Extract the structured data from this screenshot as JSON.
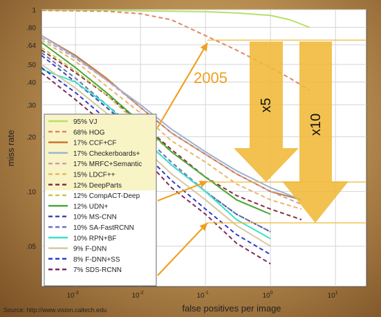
{
  "chart_data": {
    "type": "line",
    "xlabel": "false positives per image",
    "ylabel": "miss rate",
    "x_scale": "log",
    "y_scale": "log",
    "xlim": [
      0.0003,
      30
    ],
    "ylim": [
      0.03,
      1
    ],
    "x_ticks": [
      {
        "value": 0.001,
        "base": "10",
        "exp": "-3"
      },
      {
        "value": 0.01,
        "base": "10",
        "exp": "-2"
      },
      {
        "value": 0.1,
        "base": "10",
        "exp": "-1"
      },
      {
        "value": 1,
        "base": "10",
        "exp": "0"
      },
      {
        "value": 10,
        "base": "10",
        "exp": "1"
      }
    ],
    "y_ticks": [
      {
        "value": 1,
        "label": "1"
      },
      {
        "value": 0.8,
        "label": ".80"
      },
      {
        "value": 0.64,
        "label": ".64"
      },
      {
        "value": 0.5,
        "label": ".50"
      },
      {
        "value": 0.4,
        "label": ".40"
      },
      {
        "value": 0.3,
        "label": ".30"
      },
      {
        "value": 0.2,
        "label": ".20"
      },
      {
        "value": 0.1,
        "label": ".10"
      },
      {
        "value": 0.05,
        "label": ".05"
      }
    ],
    "grid": true,
    "legend_position": "lower-left",
    "series": [
      {
        "name": "95% VJ",
        "color": "#b6e06a",
        "dash": "solid",
        "x": [
          0.0003,
          0.003,
          0.03,
          0.1,
          0.3,
          1,
          2,
          4
        ],
        "y": [
          0.99,
          0.99,
          0.98,
          0.975,
          0.96,
          0.93,
          0.88,
          0.8
        ]
      },
      {
        "name": "68% HOG",
        "color": "#e0866a",
        "dash": "dashed",
        "x": [
          0.0003,
          0.003,
          0.01,
          0.03,
          0.1,
          0.3,
          1,
          2,
          4
        ],
        "y": [
          0.99,
          0.98,
          0.95,
          0.88,
          0.72,
          0.6,
          0.48,
          0.42,
          0.36
        ]
      },
      {
        "name": "17% CCF+CF",
        "color": "#c8762e",
        "dash": "solid",
        "x": [
          0.0003,
          0.001,
          0.003,
          0.01,
          0.03,
          0.1,
          0.3,
          1,
          3
        ],
        "y": [
          0.72,
          0.56,
          0.42,
          0.29,
          0.21,
          0.16,
          0.125,
          0.1,
          0.09
        ]
      },
      {
        "name": "17% Checkerboards+",
        "color": "#9ab4d2",
        "dash": "solid",
        "x": [
          0.0003,
          0.001,
          0.003,
          0.01,
          0.03,
          0.1,
          0.3,
          1,
          3
        ],
        "y": [
          0.72,
          0.55,
          0.41,
          0.3,
          0.22,
          0.165,
          0.13,
          0.105,
          0.09
        ]
      },
      {
        "name": "17% MRFC+Semantic",
        "color": "#c9a0b4",
        "dash": "dashed",
        "x": [
          0.0003,
          0.001,
          0.003,
          0.01,
          0.03,
          0.1,
          0.3,
          1,
          3
        ],
        "y": [
          0.7,
          0.54,
          0.41,
          0.29,
          0.21,
          0.16,
          0.125,
          0.1,
          0.085
        ]
      },
      {
        "name": "15% LDCF++",
        "color": "#e8b56a",
        "dash": "dashed",
        "x": [
          0.0003,
          0.001,
          0.003,
          0.01,
          0.03,
          0.1,
          0.3,
          1,
          3
        ],
        "y": [
          0.68,
          0.52,
          0.38,
          0.27,
          0.19,
          0.145,
          0.11,
          0.09,
          0.08
        ]
      },
      {
        "name": "12% DeepParts",
        "color": "#8c2c3c",
        "dash": "dashed",
        "x": [
          0.0003,
          0.001,
          0.003,
          0.01,
          0.03,
          0.1,
          0.3,
          1,
          3
        ],
        "y": [
          0.6,
          0.45,
          0.34,
          0.24,
          0.17,
          0.12,
          0.095,
          0.08,
          0.07
        ]
      },
      {
        "name": "12% CompACT-Deep",
        "color": "#c8c84a",
        "dash": "dashed",
        "x": [
          0.0003,
          0.001,
          0.003,
          0.01,
          0.03,
          0.1,
          0.3,
          1
        ],
        "y": [
          0.62,
          0.46,
          0.34,
          0.23,
          0.165,
          0.12,
          0.09,
          0.075
        ]
      },
      {
        "name": "12% UDN+",
        "color": "#4aa83c",
        "dash": "solid",
        "x": [
          0.0003,
          0.001,
          0.003,
          0.01,
          0.03,
          0.1,
          0.3,
          1
        ],
        "y": [
          0.66,
          0.48,
          0.35,
          0.24,
          0.165,
          0.12,
          0.09,
          0.075
        ]
      },
      {
        "name": "10% MS-CNN",
        "color": "#3a4ca8",
        "dash": "dashed",
        "x": [
          0.0003,
          0.001,
          0.003,
          0.01,
          0.03,
          0.1,
          0.3,
          1
        ],
        "y": [
          0.56,
          0.4,
          0.29,
          0.2,
          0.14,
          0.1,
          0.075,
          0.06
        ]
      },
      {
        "name": "10% SA-FastRCNN",
        "color": "#6a72b4",
        "dash": "dashed",
        "x": [
          0.0003,
          0.001,
          0.003,
          0.01,
          0.03,
          0.1,
          0.3,
          1
        ],
        "y": [
          0.58,
          0.42,
          0.3,
          0.21,
          0.145,
          0.1,
          0.075,
          0.06
        ]
      },
      {
        "name": "10% RPN+BF",
        "color": "#3ee0c8",
        "dash": "solid",
        "x": [
          0.0003,
          0.001,
          0.003,
          0.01,
          0.03,
          0.1,
          0.3,
          1
        ],
        "y": [
          0.47,
          0.4,
          0.3,
          0.2,
          0.14,
          0.1,
          0.07,
          0.055
        ]
      },
      {
        "name": "9% F-DNN",
        "color": "#d8c8a0",
        "dash": "solid",
        "x": [
          0.0003,
          0.001,
          0.003,
          0.01,
          0.03,
          0.1,
          0.3,
          1
        ],
        "y": [
          0.5,
          0.37,
          0.27,
          0.18,
          0.125,
          0.09,
          0.065,
          0.05
        ]
      },
      {
        "name": "8% F-DNN+SS",
        "color": "#2c3cc8",
        "dash": "dashed",
        "x": [
          0.0003,
          0.001,
          0.003,
          0.01,
          0.03,
          0.1,
          0.3,
          1
        ],
        "y": [
          0.48,
          0.35,
          0.25,
          0.17,
          0.115,
          0.08,
          0.058,
          0.045
        ]
      },
      {
        "name": "7% SDS-RCNN",
        "color": "#7a2a5a",
        "dash": "dashed",
        "x": [
          0.0003,
          0.001,
          0.003,
          0.01,
          0.03,
          0.1,
          0.3,
          1
        ],
        "y": [
          0.45,
          0.32,
          0.23,
          0.16,
          0.105,
          0.075,
          0.052,
          0.04
        ]
      }
    ],
    "annotations": {
      "year_label": "2005",
      "factor_labels": [
        "x5",
        "x10"
      ],
      "source": "Source: http://www.vision.caltech.edu"
    }
  },
  "colors": {
    "accent_orange": "#f0a020",
    "arrow_yellow": "#f0b838",
    "plot_background": "#ffffff",
    "legend_background": "#f9f4c6"
  }
}
